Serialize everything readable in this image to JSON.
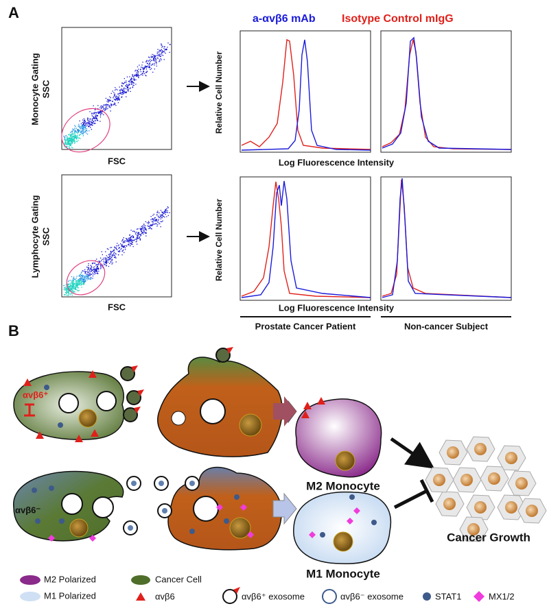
{
  "panel_a": {
    "label": "A",
    "legend": {
      "mab": "a-αvβ6 mAb",
      "isotype": "Isotype Control mIgG"
    },
    "rows": [
      {
        "gating": "Monocyte Gating",
        "ssc": "SSC",
        "fsc": "FSC",
        "y_label": "Relative Cell Number",
        "x_label": "Log Fluorescence Intensity"
      },
      {
        "gating": "Lymphocyte Gating",
        "ssc": "SSC",
        "fsc": "FSC",
        "y_label": "Relative Cell Number",
        "x_label": "Log Fluorescence Intensity"
      }
    ],
    "groups": [
      "Prostate Cancer Patient",
      "Non-cancer Subject"
    ]
  },
  "panel_b": {
    "label": "B",
    "positive": "αvβ6⁺",
    "negative": "αvβ6⁻",
    "m2": "M2 Monocyte",
    "m1": "M1 Monocyte",
    "growth": "Cancer Growth",
    "legend": {
      "m2": "M2 Polarized",
      "m1": "M1 Polarized",
      "cancer": "Cancer Cell",
      "integrin": "αvβ6",
      "pos_exosome": "αvβ6⁺ exosome",
      "neg_exosome": "αvβ6⁻ exosome",
      "stat1": "STAT1",
      "mx": "MX1/2"
    }
  }
}
